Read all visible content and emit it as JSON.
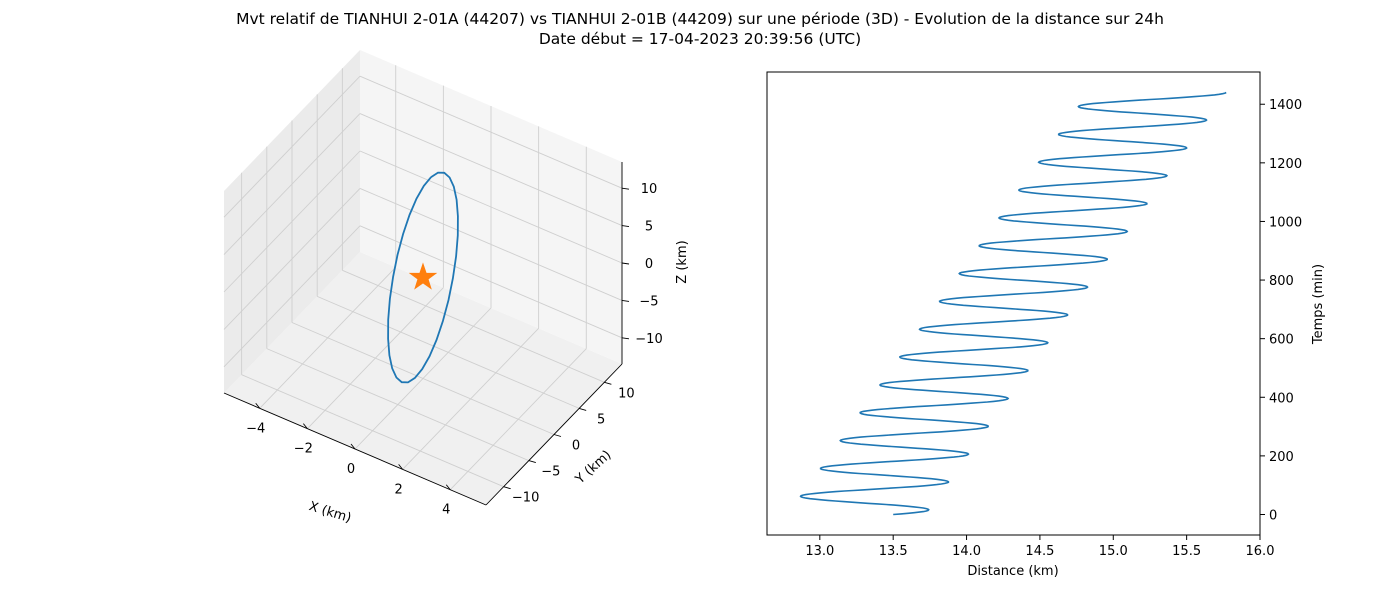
{
  "figure": {
    "title_line1": "Mvt relatif de TIANHUI 2-01A (44207) vs TIANHUI 2-01B (44209) sur une période (3D) - Evolution de la distance sur 24h",
    "title_line2": "Date début = 17-04-2023 20:39:56 (UTC)"
  },
  "colors": {
    "series": "#1f77b4",
    "marker": "#ff7f0e",
    "pane_xz": "#f5f5f5",
    "pane_yz": "#ebebeb",
    "pane_floor": "#f0f0f0",
    "grid": "#cfcfcf"
  },
  "chart_data": [
    {
      "type": "line",
      "projection": "3d",
      "xlabel": "X (km)",
      "ylabel": "Y (km)",
      "zlabel": "Z (km)",
      "xlim": [
        -5.5,
        5.5
      ],
      "ylim": [
        -13.5,
        13.5
      ],
      "zlim": [
        -13.5,
        13.5
      ],
      "xticks": [
        -4,
        -2,
        0,
        2,
        4
      ],
      "yticks": [
        -10,
        -5,
        0,
        5,
        10
      ],
      "zticks": [
        10,
        5,
        0,
        -5,
        -10
      ],
      "xtick_labels": [
        "−4",
        "−2",
        "0",
        "2",
        "4"
      ],
      "ytick_labels": [
        "−10",
        "−5",
        "0",
        "5",
        "10"
      ],
      "ztick_labels": [
        "10",
        "5",
        "0",
        "−5",
        "−10"
      ],
      "grid": true,
      "series": [
        {
          "kind": "ellipse-orbit",
          "x_range": [
            -0.1,
            0.1
          ],
          "y_range": [
            -6.5,
            6.5
          ],
          "z_range": [
            -12.3,
            12.3
          ]
        }
      ],
      "marker": {
        "symbol": "star",
        "x": 0,
        "y": 0,
        "z": 0
      }
    },
    {
      "type": "line",
      "xlabel": "Distance (km)",
      "ylabel": "Temps (min)",
      "xlim": [
        12.64,
        16.0
      ],
      "ylim": [
        -70,
        1510
      ],
      "xticks": [
        13.0,
        13.5,
        14.0,
        14.5,
        15.0,
        15.5,
        16.0
      ],
      "xtick_labels": [
        "13.0",
        "13.5",
        "14.0",
        "14.5",
        "15.0",
        "15.5",
        "16.0"
      ],
      "yticks": [
        0,
        200,
        400,
        600,
        800,
        1000,
        1200,
        1400
      ],
      "ytick_labels": [
        "0",
        "200",
        "400",
        "600",
        "800",
        "1000",
        "1200",
        "1400"
      ],
      "yaxis_side": "right",
      "grid": false,
      "series": [
        {
          "kind": "drifting-oscillation",
          "t_range": [
            0,
            1440
          ],
          "period_min": 95,
          "mean_start": 13.25,
          "mean_end": 15.3,
          "amplitude": 0.47,
          "start_value": 13.5
        }
      ]
    }
  ]
}
